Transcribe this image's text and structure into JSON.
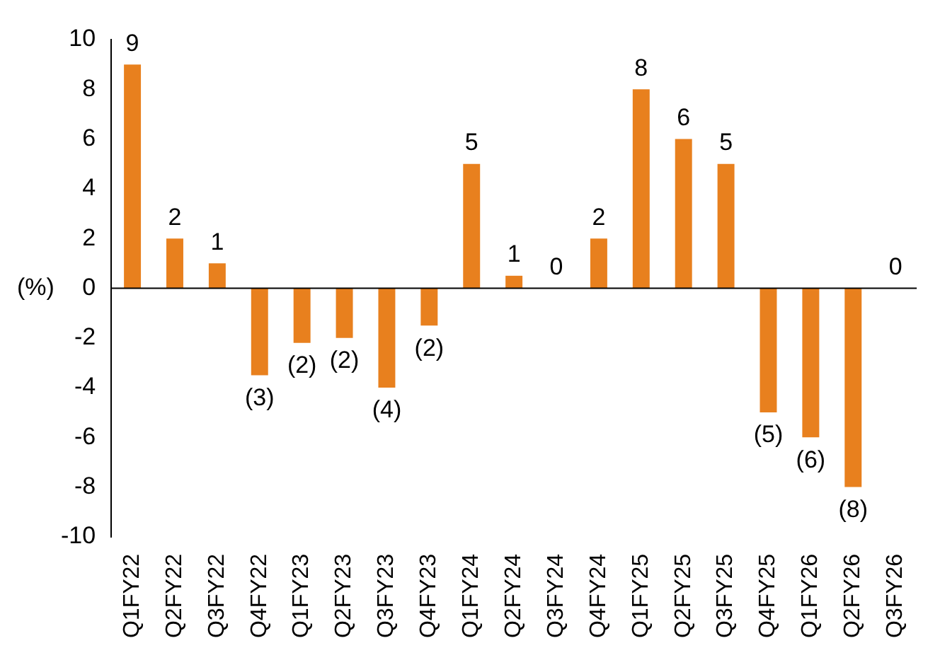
{
  "chart_data": {
    "type": "bar",
    "ylabel": "(%)",
    "categories": [
      "Q1FY22",
      "Q2FY22",
      "Q3FY22",
      "Q4FY22",
      "Q1FY23",
      "Q2FY23",
      "Q3FY23",
      "Q4FY23",
      "Q1FY24",
      "Q2FY24",
      "Q3FY24",
      "Q4FY24",
      "Q1FY25",
      "Q2FY25",
      "Q3FY25",
      "Q4FY25",
      "Q1FY26",
      "Q2FY26",
      "Q3FY26"
    ],
    "values": [
      9,
      2,
      1,
      -3.5,
      -2.2,
      -2,
      -4,
      -1.5,
      5,
      0.5,
      0,
      2,
      8,
      6,
      5,
      -5,
      -6,
      -8,
      0
    ],
    "value_labels": [
      "9",
      "2",
      "1",
      "(3)",
      "(2)",
      "(2)",
      "(4)",
      "(2)",
      "5",
      "1",
      "0",
      "2",
      "8",
      "6",
      "5",
      "(5)",
      "(6)",
      "(8)",
      "0"
    ],
    "color": "#e8801e",
    "ylim": [
      -10,
      10
    ],
    "yticks": [
      -10,
      -8,
      -6,
      -4,
      -2,
      0,
      2,
      4,
      6,
      8,
      10
    ],
    "ref_lines": [
      {
        "axis": "y",
        "value": 0,
        "color": "#000000"
      }
    ],
    "grid": false,
    "legend": false
  }
}
